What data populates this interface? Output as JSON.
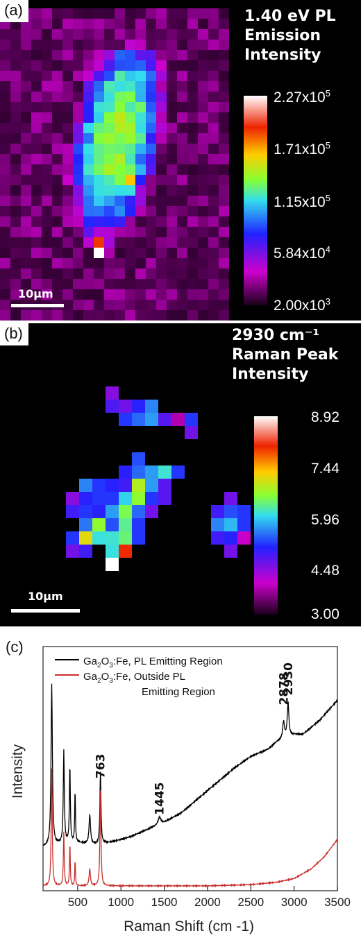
{
  "panel_a": {
    "tag": "(a)",
    "title_lines": [
      "1.40 eV PL",
      "Emission",
      "Intensity"
    ],
    "colorbar_labels": [
      {
        "base": "2.27x10",
        "exp": "5"
      },
      {
        "base": "1.71x10",
        "exp": "5"
      },
      {
        "base": "1.15x10",
        "exp": "5"
      },
      {
        "base": "5.84x10",
        "exp": "4"
      },
      {
        "base": "2.00x10",
        "exp": "3"
      }
    ],
    "scale_bar_label": "10µm"
  },
  "panel_b": {
    "tag": "(b)",
    "title_lines": [
      "2930 cm⁻¹",
      "Raman Peak",
      "Intensity"
    ],
    "colorbar_labels": [
      "8.92",
      "7.44",
      "5.96",
      "4.48",
      "3.00"
    ],
    "scale_bar_label": "10µm"
  },
  "panel_c": {
    "tag": "(c)"
  },
  "colors": {
    "black_series": "#000000",
    "red_series": "#c9302c",
    "colormap": [
      "#1a001a",
      "#cc00cc",
      "#2222ff",
      "#33ddee",
      "#88ff33",
      "#ffcc00",
      "#ee2200",
      "#ffffff"
    ]
  },
  "chart_data": {
    "type": "line",
    "xlabel": "Raman Shift (cm -1)",
    "ylabel": "Intensity",
    "xlim": [
      100,
      3500
    ],
    "ylim": [
      0,
      100
    ],
    "xticks": [
      500,
      1000,
      1500,
      2000,
      2500,
      3000,
      3500
    ],
    "xtick_labels": [
      "500",
      "1000",
      "1500",
      "2000",
      "2500",
      "3000",
      "3500"
    ],
    "legend": {
      "placement": "top-left",
      "entries": [
        {
          "prefix": "Ga",
          "sub1": "2",
          "mid": "O",
          "sub2": "3",
          "suffix": ":Fe, PL Emitting Region",
          "line2": ""
        },
        {
          "prefix": "Ga",
          "sub1": "2",
          "mid": "O",
          "sub2": "3",
          "suffix": ":Fe, Outside PL",
          "line2": "Emitting Region"
        }
      ]
    },
    "annotations": [
      {
        "text": "763",
        "x": 763,
        "y": 46
      },
      {
        "text": "1445",
        "x": 1445,
        "y": 31
      },
      {
        "text": "2878",
        "x": 2878,
        "y": 76
      },
      {
        "text": "2930",
        "x": 2930,
        "y": 80
      }
    ],
    "series": [
      {
        "name": "Ga2O3:Fe, PL Emitting Region",
        "baseline": [
          [
            100,
            18
          ],
          [
            400,
            20
          ],
          [
            700,
            19
          ],
          [
            900,
            20
          ],
          [
            1100,
            22
          ],
          [
            1300,
            25
          ],
          [
            1500,
            28
          ],
          [
            1700,
            32
          ],
          [
            1900,
            38
          ],
          [
            2100,
            44
          ],
          [
            2300,
            50
          ],
          [
            2500,
            55
          ],
          [
            2700,
            58
          ],
          [
            2800,
            61
          ],
          [
            3000,
            64
          ],
          [
            3100,
            64
          ],
          [
            3300,
            70
          ],
          [
            3500,
            78
          ]
        ],
        "peaks": [
          [
            200,
            66,
            18
          ],
          [
            340,
            38,
            14
          ],
          [
            410,
            32,
            12
          ],
          [
            470,
            22,
            10
          ],
          [
            640,
            12,
            20
          ],
          [
            763,
            30,
            14
          ],
          [
            1445,
            3,
            40
          ],
          [
            2878,
            7,
            25
          ],
          [
            2930,
            14,
            22
          ]
        ]
      },
      {
        "name": "Ga2O3:Fe, Outside PL Emitting Region",
        "baseline": [
          [
            100,
            2
          ],
          [
            400,
            2
          ],
          [
            700,
            2
          ],
          [
            1000,
            2
          ],
          [
            1500,
            2
          ],
          [
            2000,
            2
          ],
          [
            2500,
            2.5
          ],
          [
            2800,
            3.5
          ],
          [
            3000,
            5
          ],
          [
            3200,
            9
          ],
          [
            3350,
            14
          ],
          [
            3500,
            21
          ]
        ],
        "peaks": [
          [
            200,
            48,
            14
          ],
          [
            340,
            22,
            12
          ],
          [
            410,
            18,
            10
          ],
          [
            470,
            11,
            9
          ],
          [
            640,
            7,
            18
          ],
          [
            763,
            40,
            14
          ]
        ]
      }
    ]
  }
}
